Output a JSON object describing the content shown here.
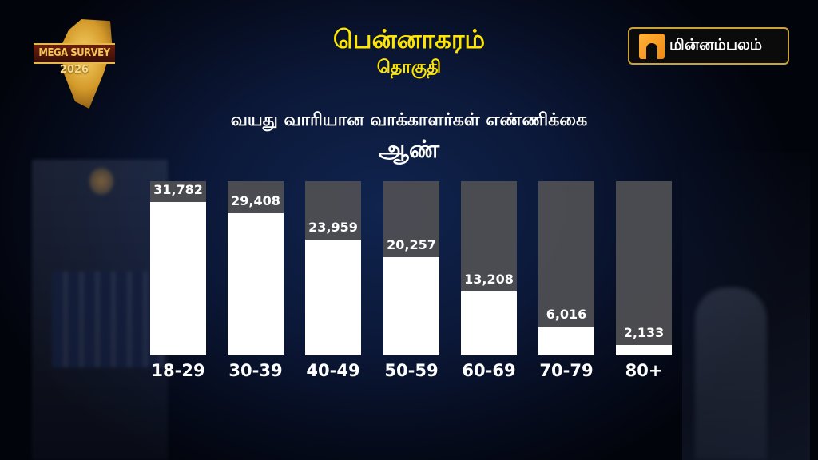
{
  "header": {
    "logo_left": {
      "line1": "MEGA SURVEY",
      "line2": "2026"
    },
    "title": "பென்னாகரம்",
    "subtitle": "தொகுதி",
    "brand": {
      "name": "மின்னம்பலம்",
      "icon": "minnambalam-m-icon",
      "accent": "#f39a1e",
      "border": "#c9a33a"
    }
  },
  "chart_heading": {
    "line1": "வயது வாரியான வாக்காளர்கள் எண்ணிக்கை",
    "line2": "ஆண்"
  },
  "colors": {
    "title": "#ffe600",
    "bar_fill": "#ffffff",
    "bar_track": "#505054",
    "background": "#0b1838"
  },
  "chart_data": {
    "type": "bar",
    "title": "வயது வாரியான வாக்காளர்கள் எண்ணிக்கை — ஆண்",
    "xlabel": "",
    "ylabel": "",
    "categories": [
      "18-29",
      "30-39",
      "40-49",
      "50-59",
      "60-69",
      "70-79",
      "80+"
    ],
    "values": [
      31782,
      29408,
      23959,
      20257,
      13208,
      6016,
      2133
    ],
    "value_labels": [
      "31,782",
      "29,408",
      "23,959",
      "20,257",
      "13,208",
      "6,016",
      "2,133"
    ],
    "ylim": [
      0,
      36000
    ],
    "grid": false,
    "legend": null
  }
}
